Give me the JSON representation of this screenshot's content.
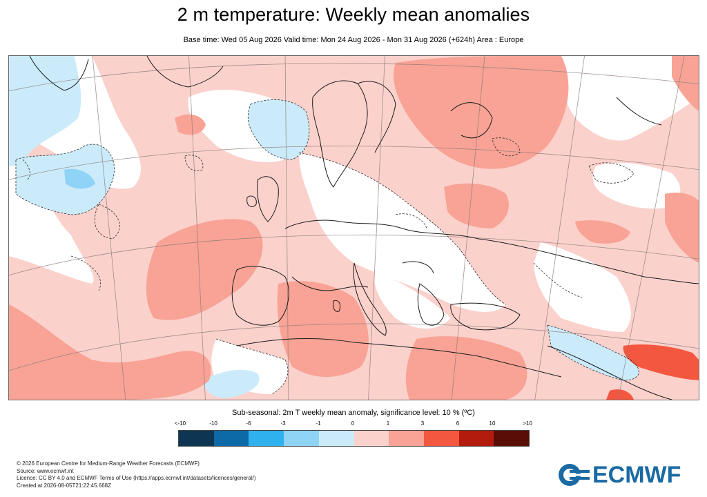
{
  "header": {
    "title": "2 m temperature: Weekly mean anomalies",
    "subtitle": "Base time: Wed 05 Aug 2026 Valid time: Mon 24 Aug 2026 - Mon 31 Aug 2026 (+624h) Area : Europe"
  },
  "legend": {
    "title": "Sub-seasonal: 2m T weekly mean anomaly, significance level: 10 % (ºC)",
    "ticks": [
      "<-10",
      "-10",
      "-6",
      "-3",
      "-1",
      "0",
      "1",
      "3",
      "6",
      "10",
      ">10"
    ],
    "colors": [
      "#0e3552",
      "#0d6aa7",
      "#2eb1ee",
      "#8fd3f7",
      "#cbebfb",
      "#fbd1cc",
      "#f8a395",
      "#f4573f",
      "#b31c0c",
      "#5a0c07"
    ]
  },
  "map": {
    "area": "Europe",
    "region_icons": [
      "land-outline",
      "significance-contour",
      "graticule"
    ]
  },
  "footer": {
    "lines": [
      "© 2026 European Centre for Medium-Range Weather Forecasts (ECMWF)",
      "Source: www.ecmwf.int",
      "Licence: CC BY 4.0 and ECMWF Terms of Use (https://apps.ecmwf.int/datasets/licences/general/)",
      "Created at 2026-08-05T21:22:45.668Z"
    ]
  },
  "logo": {
    "text": "ECMWF",
    "icon": "ecmwf-logo-icon"
  }
}
